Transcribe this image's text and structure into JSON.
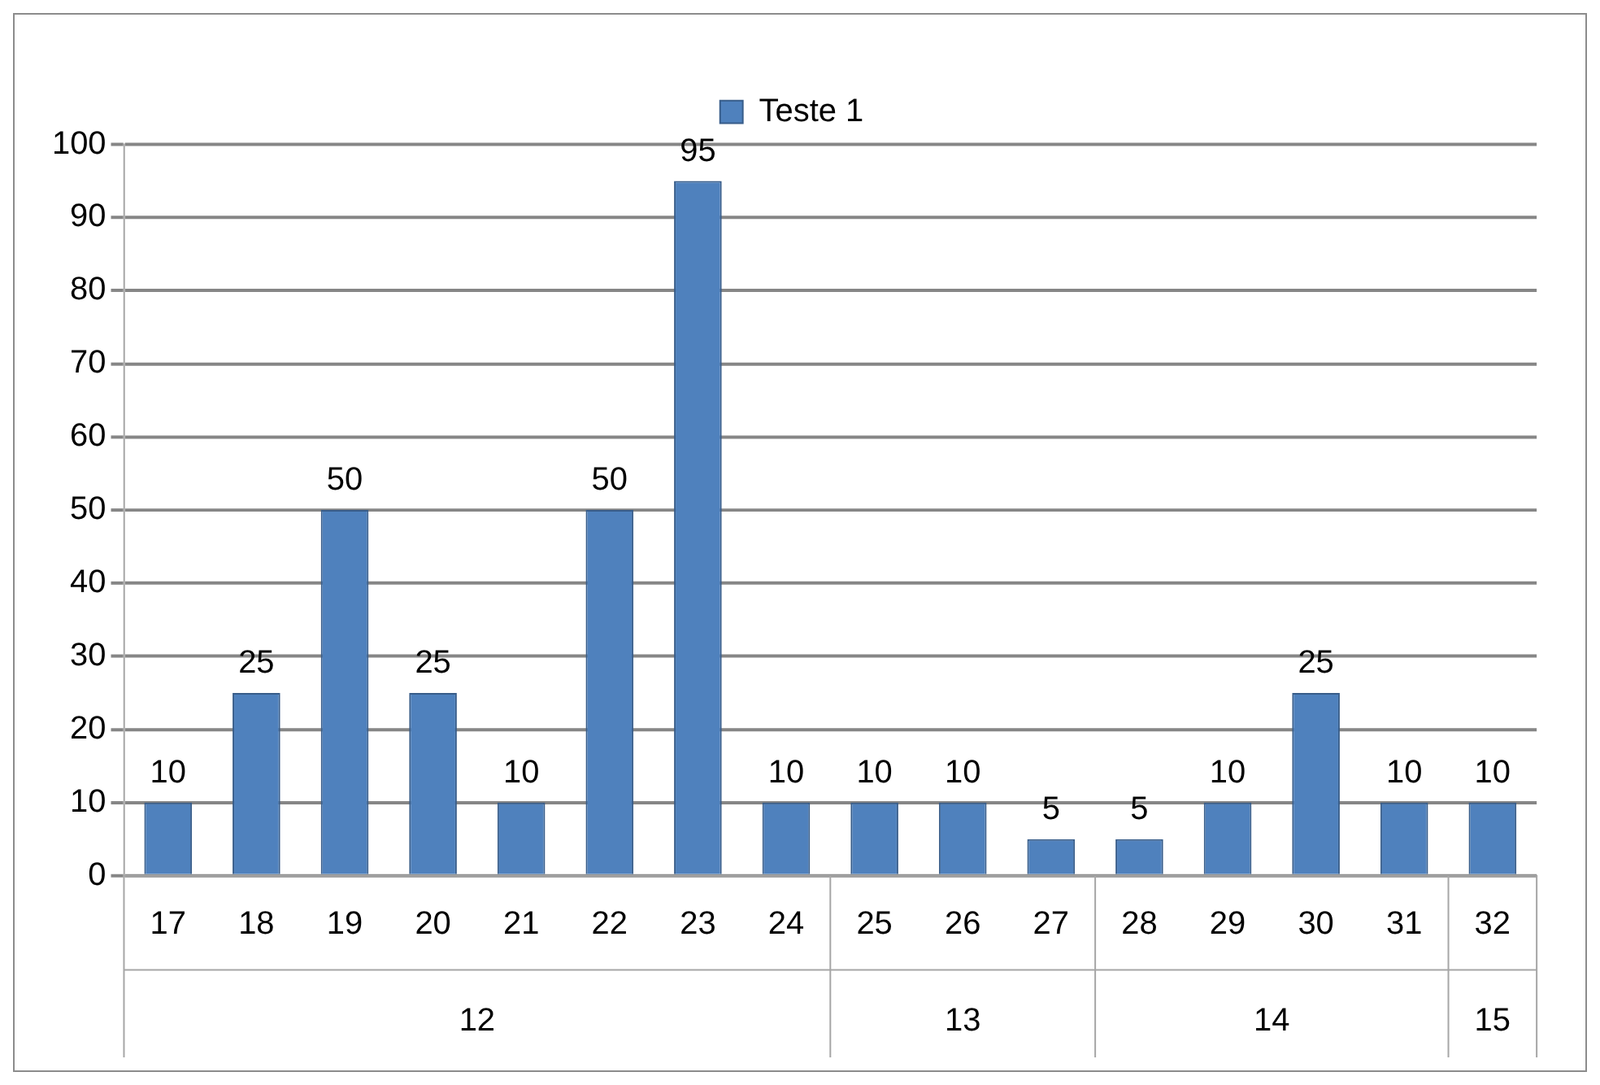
{
  "chart_data": {
    "type": "bar",
    "categories": [
      "17",
      "18",
      "19",
      "20",
      "21",
      "22",
      "23",
      "24",
      "25",
      "26",
      "27",
      "28",
      "29",
      "30",
      "31",
      "32"
    ],
    "series": [
      {
        "name": "Teste 1",
        "color": "#4f81bd",
        "values": [
          10,
          25,
          50,
          25,
          10,
          50,
          95,
          10,
          10,
          10,
          5,
          5,
          10,
          25,
          10,
          10
        ]
      }
    ],
    "ylim": [
      0,
      100
    ],
    "yticks": [
      0,
      10,
      20,
      30,
      40,
      50,
      60,
      70,
      80,
      90,
      100
    ],
    "grid": "y",
    "legend": "top",
    "data_labels": true,
    "annotations": [
      "12",
      "13",
      "14",
      "15"
    ]
  }
}
